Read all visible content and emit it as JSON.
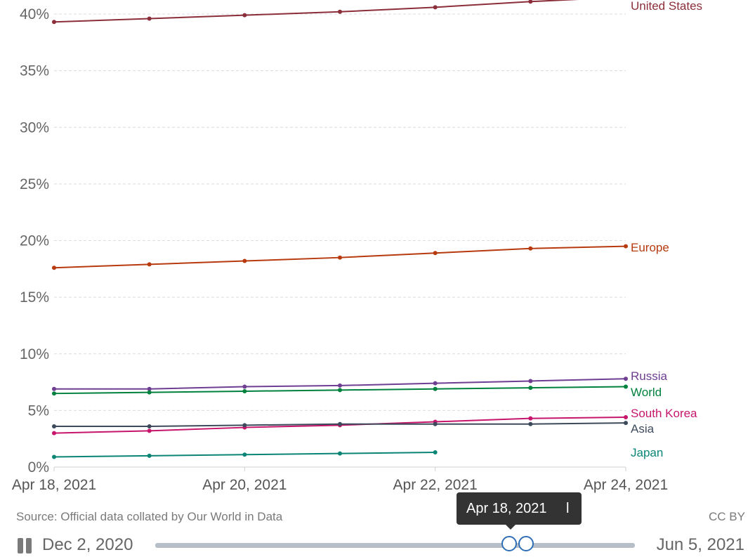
{
  "chart_data": {
    "type": "line",
    "title": "",
    "xlabel": "",
    "ylabel": "",
    "x": [
      "2021-04-18",
      "2021-04-19",
      "2021-04-20",
      "2021-04-21",
      "2021-04-22",
      "2021-04-23",
      "2021-04-24"
    ],
    "x_tick_labels": [
      "Apr 18, 2021",
      "Apr 20, 2021",
      "Apr 22, 2021",
      "Apr 24, 2021"
    ],
    "x_tick_values": [
      "2021-04-18",
      "2021-04-20",
      "2021-04-22",
      "2021-04-24"
    ],
    "y_tick_labels": [
      "0%",
      "5%",
      "10%",
      "15%",
      "20%",
      "25%",
      "30%",
      "35%",
      "40%"
    ],
    "y_tick_values": [
      0,
      5,
      10,
      15,
      20,
      25,
      30,
      35,
      40
    ],
    "ylim": [
      0,
      41.5
    ],
    "grid": true,
    "legend": "line-end labels",
    "series": [
      {
        "name": "United States",
        "color": "#8b2e3a",
        "values": [
          39.3,
          39.6,
          39.9,
          40.2,
          40.6,
          41.1,
          41.5
        ]
      },
      {
        "name": "Europe",
        "color": "#b73a0e",
        "values": [
          17.6,
          17.9,
          18.2,
          18.5,
          18.9,
          19.3,
          19.5
        ]
      },
      {
        "name": "Russia",
        "color": "#6d3e91",
        "values": [
          6.9,
          6.9,
          7.1,
          7.2,
          7.4,
          7.6,
          7.8
        ]
      },
      {
        "name": "World",
        "color": "#00813d",
        "values": [
          6.5,
          6.6,
          6.7,
          6.8,
          6.9,
          7.0,
          7.1
        ]
      },
      {
        "name": "South Korea",
        "color": "#c6156b",
        "values": [
          3.0,
          3.2,
          3.5,
          3.7,
          4.0,
          4.3,
          4.4
        ]
      },
      {
        "name": "Asia",
        "color": "#3d4a5c",
        "values": [
          3.6,
          3.6,
          3.7,
          3.8,
          3.8,
          3.8,
          3.9
        ]
      },
      {
        "name": "Japan",
        "color": "#0a8575",
        "values": [
          0.9,
          1.0,
          1.1,
          1.2,
          1.3,
          null,
          null
        ]
      }
    ]
  },
  "footer": {
    "source": "Source: Official data collated by Our World in Data",
    "license": "CC BY"
  },
  "timeline": {
    "start_label": "Dec 2, 2020",
    "end_label": "Jun 5, 2021",
    "tooltip": "Apr 18, 2021",
    "tooltip_extra": "l"
  }
}
